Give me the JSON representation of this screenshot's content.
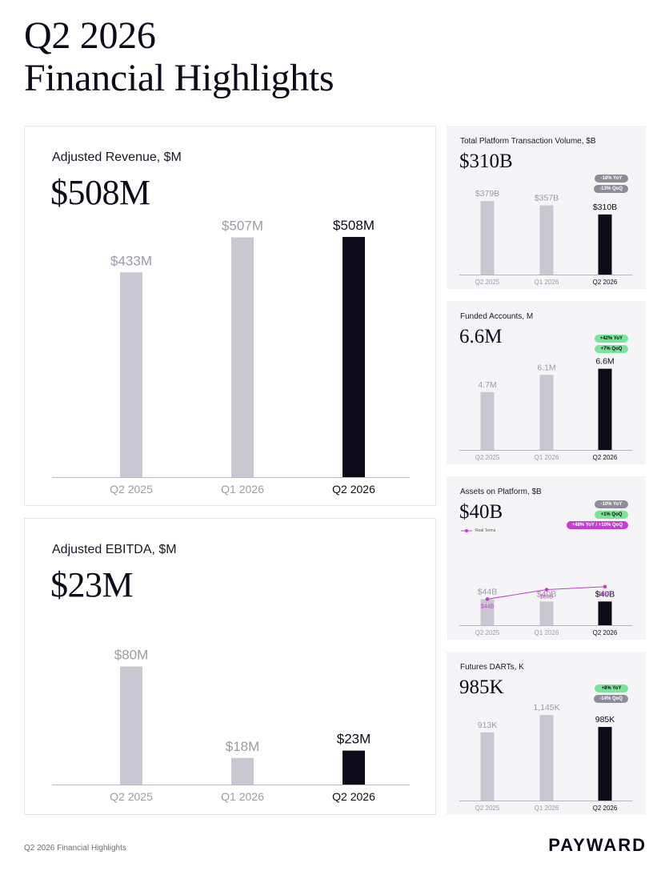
{
  "page": {
    "title_line1": "Q2 2026",
    "title_line2": "Financial Highlights",
    "footer": "Q2 2026 Financial Highlights",
    "logo": "PAYWARD"
  },
  "colors": {
    "bar_prior": "#c9c7d1",
    "bar_current": "#0d0a1a",
    "label_prior": "#9d9aa8",
    "label_current": "#0d0a1a",
    "baseline": "#b8b5c2",
    "real_terms": "#c63bd2"
  },
  "cards": {
    "revenue": {
      "label": "Adjusted Revenue, $M",
      "value": "$508M",
      "badges": []
    },
    "ebitda": {
      "label": "Adjusted EBITDA, $M",
      "value": "$23M",
      "badges": []
    },
    "volume": {
      "label": "Total Platform Transaction Volume, $B",
      "value": "$310B",
      "badges": [
        {
          "text": "-18% YoY",
          "style": "gray"
        },
        {
          "text": "-13% QoQ",
          "style": "gray"
        }
      ]
    },
    "accounts": {
      "label": "Funded Accounts, M",
      "value": "6.6M",
      "badges": [
        {
          "text": "+42% YoY",
          "style": "green"
        },
        {
          "text": "+7% QoQ",
          "style": "green"
        }
      ]
    },
    "assets": {
      "label": "Assets on Platform, $B",
      "value": "$40B",
      "legend": "Real Terms",
      "badges": [
        {
          "text": "-10% YoY",
          "style": "gray"
        },
        {
          "text": "+1% QoQ",
          "style": "green"
        },
        {
          "text": "+48% YoY / +10% QoQ",
          "style": "magenta"
        }
      ]
    },
    "darts": {
      "label": "Futures DARTs, K",
      "value": "985K",
      "badges": [
        {
          "text": "+8% YoY",
          "style": "green"
        },
        {
          "text": "-14% QoQ",
          "style": "gray"
        }
      ]
    }
  },
  "chart_data": [
    {
      "id": "revenue",
      "type": "bar",
      "title": "Adjusted Revenue, $M",
      "categories": [
        "Q2 2025",
        "Q1 2026",
        "Q2 2026"
      ],
      "values": [
        433,
        507,
        508
      ],
      "labels": [
        "$433M",
        "$507M",
        "$508M"
      ],
      "highlight_index": 2,
      "ylim": [
        0,
        640
      ],
      "grid": false
    },
    {
      "id": "ebitda",
      "type": "bar",
      "title": "Adjusted EBITDA, $M",
      "categories": [
        "Q2 2025",
        "Q1 2026",
        "Q2 2026"
      ],
      "values": [
        80,
        18,
        23
      ],
      "labels": [
        "$80M",
        "$18M",
        "$23M"
      ],
      "highlight_index": 2,
      "ylim": [
        0,
        102
      ],
      "grid": false
    },
    {
      "id": "volume",
      "type": "bar",
      "title": "Total Platform Transaction Volume, $B",
      "categories": [
        "Q2 2025",
        "Q1 2026",
        "Q2 2026"
      ],
      "values": [
        379,
        357,
        310
      ],
      "labels": [
        "$379B",
        "$357B",
        "$310B"
      ],
      "highlight_index": 2,
      "ylim": [
        0,
        520
      ],
      "grid": false
    },
    {
      "id": "accounts",
      "type": "bar",
      "title": "Funded Accounts, M",
      "categories": [
        "Q2 2025",
        "Q1 2026",
        "Q2 2026"
      ],
      "values": [
        4.7,
        6.1,
        6.6
      ],
      "labels": [
        "4.7M",
        "6.1M",
        "6.6M"
      ],
      "highlight_index": 2,
      "ylim": [
        0,
        8.2
      ],
      "grid": false
    },
    {
      "id": "assets",
      "type": "bar",
      "title": "Assets on Platform, $B",
      "categories": [
        "Q2 2025",
        "Q1 2026",
        "Q2 2026"
      ],
      "values": [
        44,
        40,
        40
      ],
      "labels": [
        "$44B",
        "$40B",
        "$40B"
      ],
      "highlight_index": 2,
      "ylim": [
        0,
        170
      ],
      "grid": false,
      "series": [
        {
          "name": "Real Terms",
          "type": "line",
          "values": [
            44,
            60,
            65
          ],
          "labels": [
            "$44B",
            "$60B",
            "$65B"
          ]
        }
      ]
    },
    {
      "id": "darts",
      "type": "bar",
      "title": "Futures DARTs, K",
      "categories": [
        "Q2 2025",
        "Q1 2026",
        "Q2 2026"
      ],
      "values": [
        913,
        1145,
        985
      ],
      "labels": [
        "913K",
        "1,145K",
        "985K"
      ],
      "highlight_index": 2,
      "ylim": [
        0,
        1350
      ],
      "grid": false
    }
  ]
}
